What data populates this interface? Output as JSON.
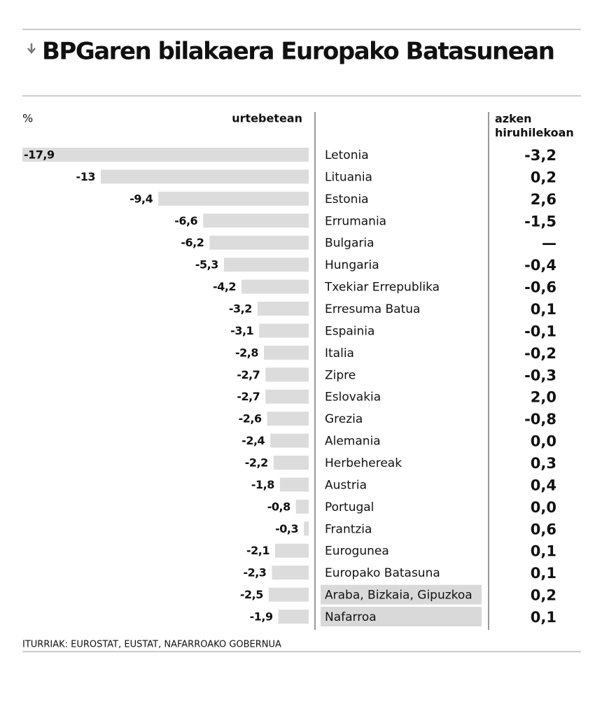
{
  "chart_data": {
    "type": "bar",
    "orientation": "horizontal",
    "title": "BPGaren bilakaera Europako Batasunean",
    "unit_label": "%",
    "categories": [
      "Letonia",
      "Lituania",
      "Estonia",
      "Errumania",
      "Bulgaria",
      "Hungaria",
      "Txekiar Errepublika",
      "Erresuma Batua",
      "Espainia",
      "Italia",
      "Zipre",
      "Eslovakia",
      "Grezia",
      "Alemania",
      "Herbehereak",
      "Austria",
      "Portugal",
      "Frantzia",
      "Eurogunea",
      "Europako Batasuna",
      "Araba, Bizkaia, Gipuzkoa",
      "Nafarroa"
    ],
    "series": [
      {
        "name": "urtebetean",
        "color": "#dcdcdc",
        "values": [
          -17.9,
          -13,
          -9.4,
          -6.6,
          -6.2,
          -5.3,
          -4.2,
          -3.2,
          -3.1,
          -2.8,
          -2.7,
          -2.7,
          -2.6,
          -2.4,
          -2.2,
          -1.8,
          -0.8,
          -0.3,
          -2.1,
          -2.3,
          -2.5,
          -1.9
        ],
        "value_labels": [
          "-17,9",
          "-13",
          "-9,4",
          "-6,6",
          "-6,2",
          "-5,3",
          "-4,2",
          "-3,2",
          "-3,1",
          "-2,8",
          "-2,7",
          "-2,7",
          "-2,6",
          "-2,4",
          "-2,2",
          "-1,8",
          "-0,8",
          "-0,3",
          "-2,1",
          "-2,3",
          "-2,5",
          "-1,9"
        ]
      },
      {
        "name": "azken hiruhilekoan",
        "values": [
          -3.2,
          0.2,
          2.6,
          -1.5,
          null,
          -0.4,
          -0.6,
          0.1,
          -0.1,
          -0.2,
          -0.3,
          2.0,
          -0.8,
          0.0,
          0.3,
          0.4,
          0.0,
          0.6,
          0.1,
          0.1,
          0.2,
          0.1
        ],
        "value_labels": [
          "-3,2",
          "0,2",
          "2,6",
          "-1,5",
          "—",
          "-0,4",
          "-0,6",
          "0,1",
          "-0,1",
          "-0,2",
          "-0,3",
          "2,0",
          "-0,8",
          "0,0",
          "0,3",
          "0,4",
          "0,0",
          "0,6",
          "0,1",
          "0,1",
          "0,2",
          "0,1"
        ]
      }
    ],
    "xlim": [
      -17.9,
      0
    ],
    "highlighted": [
      "Araba, Bizkaia, Gipuzkoa",
      "Nafarroa"
    ],
    "highlight_color": "#d9d9d9",
    "source": "ITURRIAK: EUROSTAT, EUSTAT, NAFARROAKO GOBERNUA"
  }
}
